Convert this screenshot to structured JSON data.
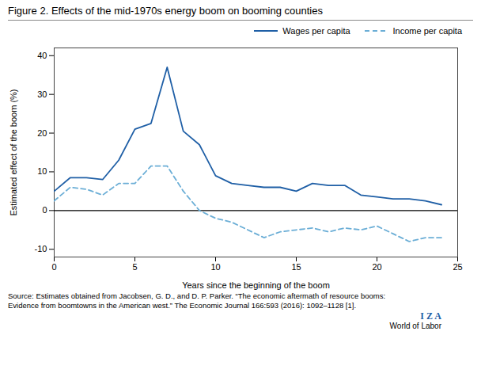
{
  "chart_data": {
    "type": "line",
    "title": "Figure 2. Effects of the mid-1970s energy boom on booming counties",
    "x_label": "Years since the beginning of the boom",
    "y_label": "Estimated effect of the boom (%)",
    "x": [
      0,
      1,
      2,
      3,
      4,
      5,
      6,
      7,
      8,
      9,
      10,
      11,
      12,
      13,
      14,
      15,
      16,
      17,
      18,
      19,
      20,
      21,
      22,
      23,
      24
    ],
    "series": [
      {
        "name": "Wages per capita",
        "color": "#1f5fa6",
        "line_style": "solid",
        "values": [
          5.0,
          8.5,
          8.5,
          8.0,
          13.0,
          21.0,
          22.5,
          37.0,
          20.5,
          17.0,
          9.0,
          7.0,
          6.5,
          6.0,
          6.0,
          5.0,
          7.0,
          6.5,
          6.5,
          4.0,
          3.5,
          3.0,
          3.0,
          2.5,
          1.5
        ]
      },
      {
        "name": "Income per capita",
        "color": "#6baed6",
        "line_style": "dashed",
        "values": [
          2.5,
          6.0,
          5.5,
          4.0,
          7.0,
          7.0,
          11.5,
          11.5,
          5.0,
          0.0,
          -2.0,
          -3.0,
          -5.0,
          -7.0,
          -5.5,
          -5.0,
          -4.5,
          -5.5,
          -4.5,
          -5.0,
          -4.0,
          -6.0,
          -8.0,
          -7.0,
          -7.0
        ]
      }
    ],
    "xlim": [
      0,
      25
    ],
    "ylim": [
      -12,
      42
    ],
    "xticks": [
      0,
      5,
      10,
      15,
      20,
      25
    ],
    "yticks": [
      -10,
      0,
      10,
      20,
      30,
      40
    ],
    "grid": false,
    "legend": "upper right",
    "annotations": [
      "Source: Estimates obtained from Jacobsen, G. D., and D. P. Parker. “The economic aftermath of resource booms:\nEvidence from boomtowns in the American west.” The Economic Journal 166:593 (2016): 1092–1128 [1].",
      "I Z A",
      "World of Labor"
    ]
  }
}
